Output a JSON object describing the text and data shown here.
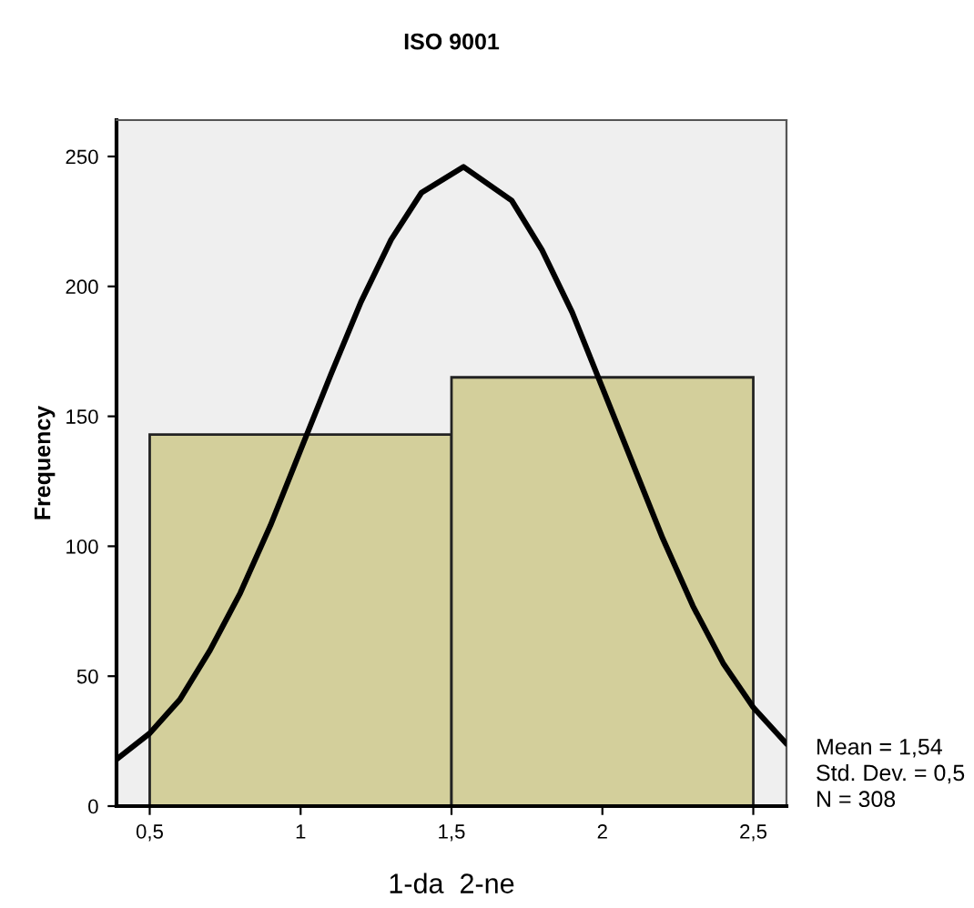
{
  "chart_data": {
    "type": "histogram",
    "title": "ISO 9001",
    "xlabel": "1-da  2-ne",
    "ylabel": "Frequency",
    "bins": [
      0.5,
      1.5,
      2.5
    ],
    "values": [
      143,
      165
    ],
    "color": "#d3cf9b",
    "series": [
      {
        "type": "line",
        "color": "#000000",
        "x": [
          0.39,
          0.5,
          0.6,
          0.7,
          0.8,
          0.9,
          1.0,
          1.1,
          1.2,
          1.3,
          1.4,
          1.54,
          1.7,
          1.8,
          1.9,
          2.0,
          2.1,
          2.2,
          2.3,
          2.4,
          2.5,
          2.61
        ],
        "values": [
          18,
          28,
          41,
          60,
          82,
          108,
          137,
          166,
          194,
          218,
          236,
          246,
          233,
          214,
          190,
          161,
          132,
          103,
          77,
          55,
          38,
          24
        ]
      }
    ],
    "xlim": [
      0.39,
      2.61
    ],
    "ylim": [
      0,
      264
    ],
    "xticks": [
      {
        "value": 0.5,
        "label": "0,5"
      },
      1,
      {
        "value": 1.5,
        "label": "1,5"
      },
      2,
      {
        "value": 2.5,
        "label": "2,5"
      }
    ],
    "yticks": [
      0,
      50,
      100,
      150,
      200,
      250
    ],
    "grid": false,
    "legend": false,
    "annotations": [
      "Mean = 1,54\nStd. Dev. = 0,5\nN = 308"
    ]
  }
}
